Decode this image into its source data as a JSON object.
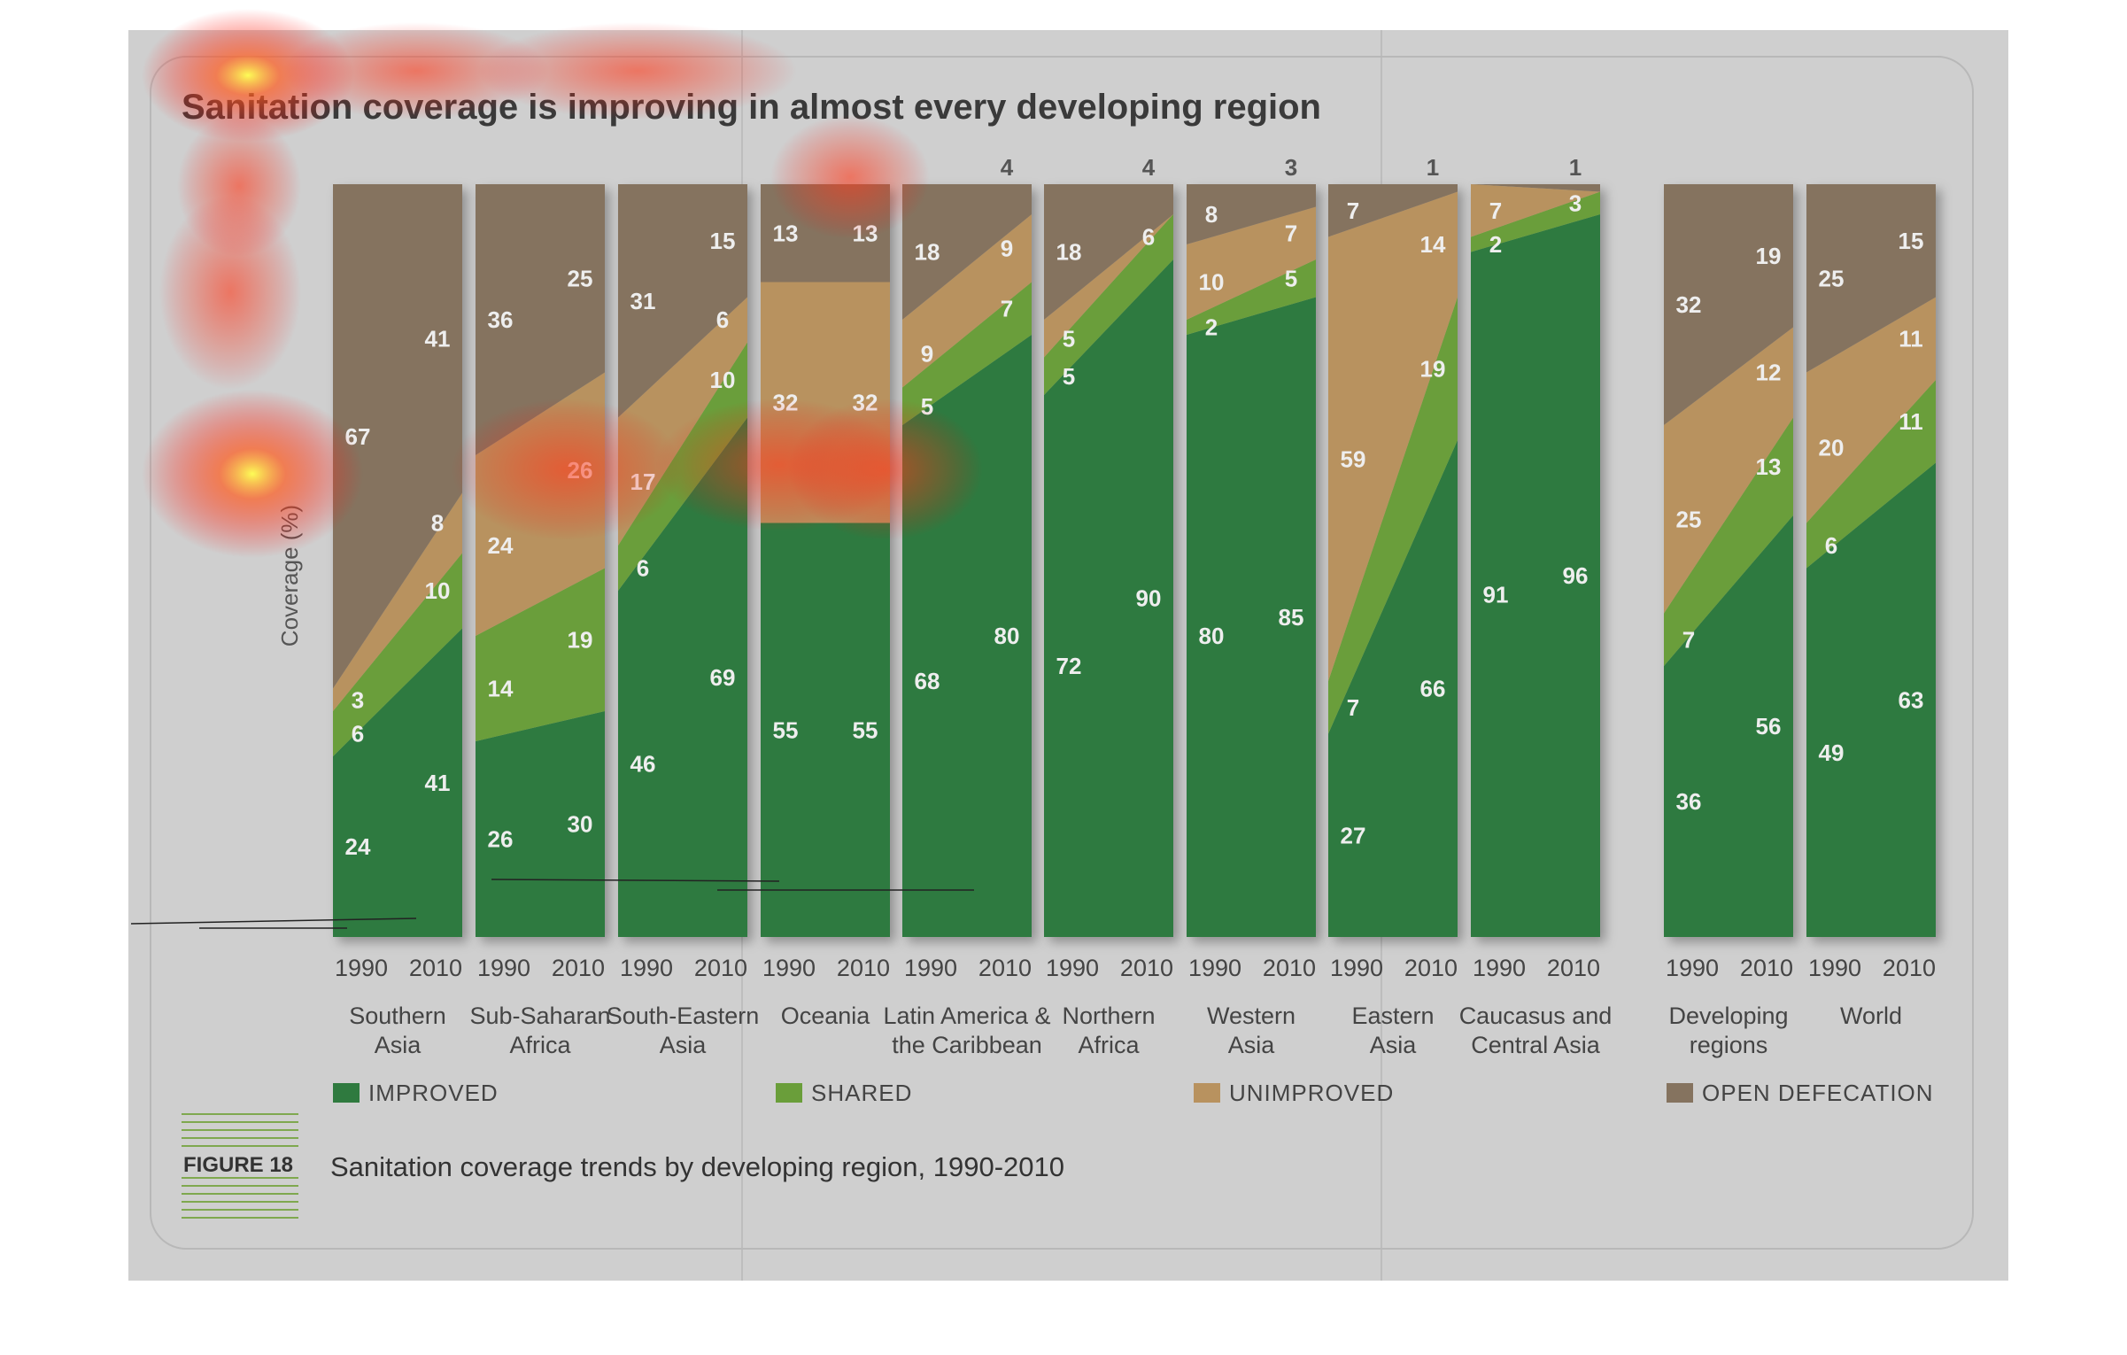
{
  "chart_data": {
    "type": "area",
    "title": "Sanitation coverage is improving in almost every developing region",
    "ylabel": "Coverage (%)",
    "ylim": [
      0,
      100
    ],
    "years": [
      "1990",
      "2010"
    ],
    "figure_label": "FIGURE 18",
    "caption": "Sanitation coverage trends by developing region, 1990-2010",
    "legend": [
      {
        "key": "improved",
        "label": "IMPROVED",
        "color": "#2f7a3f"
      },
      {
        "key": "shared",
        "label": "SHARED",
        "color": "#6a9e3a"
      },
      {
        "key": "unimproved",
        "label": "UNIMPROVED",
        "color": "#b8925f"
      },
      {
        "key": "open",
        "label": "OPEN DEFECATION",
        "color": "#85735f"
      }
    ],
    "regions": [
      {
        "name": [
          "Southern",
          "Asia"
        ],
        "y1990": {
          "improved": 24,
          "shared": 6,
          "unimproved": 3,
          "open": 67
        },
        "y2010": {
          "improved": 41,
          "shared": 10,
          "unimproved": 8,
          "open": 41
        }
      },
      {
        "name": [
          "Sub-Saharan",
          "Africa"
        ],
        "y1990": {
          "improved": 26,
          "shared": 14,
          "unimproved": 24,
          "open": 36
        },
        "y2010": {
          "improved": 30,
          "shared": 19,
          "unimproved": 26,
          "open": 25
        }
      },
      {
        "name": [
          "South-Eastern",
          "Asia"
        ],
        "y1990": {
          "improved": 46,
          "shared": 6,
          "unimproved": 17,
          "open": 31
        },
        "y2010": {
          "improved": 69,
          "shared": 10,
          "unimproved": 6,
          "open": 15
        }
      },
      {
        "name": [
          "Oceania",
          ""
        ],
        "y1990": {
          "improved": 55,
          "shared": 0,
          "unimproved": 32,
          "open": 13
        },
        "y2010": {
          "improved": 55,
          "shared": 0,
          "unimproved": 32,
          "open": 13
        }
      },
      {
        "name": [
          "Latin America &",
          "the Caribbean"
        ],
        "y1990": {
          "improved": 68,
          "shared": 5,
          "unimproved": 9,
          "open": 18
        },
        "y2010": {
          "improved": 80,
          "shared": 7,
          "unimproved": 9,
          "open": 4
        }
      },
      {
        "name": [
          "Northern",
          "Africa"
        ],
        "y1990": {
          "improved": 72,
          "shared": 5,
          "unimproved": 5,
          "open": 18
        },
        "y2010": {
          "improved": 90,
          "shared": 6,
          "unimproved": 0,
          "open": 4
        }
      },
      {
        "name": [
          "Western",
          "Asia"
        ],
        "y1990": {
          "improved": 80,
          "shared": 2,
          "unimproved": 10,
          "open": 8
        },
        "y2010": {
          "improved": 85,
          "shared": 5,
          "unimproved": 7,
          "open": 3
        }
      },
      {
        "name": [
          "Eastern",
          "Asia"
        ],
        "y1990": {
          "improved": 27,
          "shared": 7,
          "unimproved": 59,
          "open": 7
        },
        "y2010": {
          "improved": 66,
          "shared": 19,
          "unimproved": 14,
          "open": 1
        }
      },
      {
        "name": [
          "Caucasus and",
          "Central Asia"
        ],
        "y1990": {
          "improved": 91,
          "shared": 2,
          "unimproved": 7,
          "open": 0
        },
        "y2010": {
          "improved": 96,
          "shared": 3,
          "unimproved": 0,
          "open": 1
        }
      },
      {
        "name": [
          "Developing",
          "regions"
        ],
        "y1990": {
          "improved": 36,
          "shared": 7,
          "unimproved": 25,
          "open": 32
        },
        "y2010": {
          "improved": 56,
          "shared": 13,
          "unimproved": 12,
          "open": 19
        }
      },
      {
        "name": [
          "World",
          ""
        ],
        "y1990": {
          "improved": 49,
          "shared": 6,
          "unimproved": 20,
          "open": 25
        },
        "y2010": {
          "improved": 63,
          "shared": 11,
          "unimproved": 11,
          "open": 15
        }
      }
    ]
  }
}
